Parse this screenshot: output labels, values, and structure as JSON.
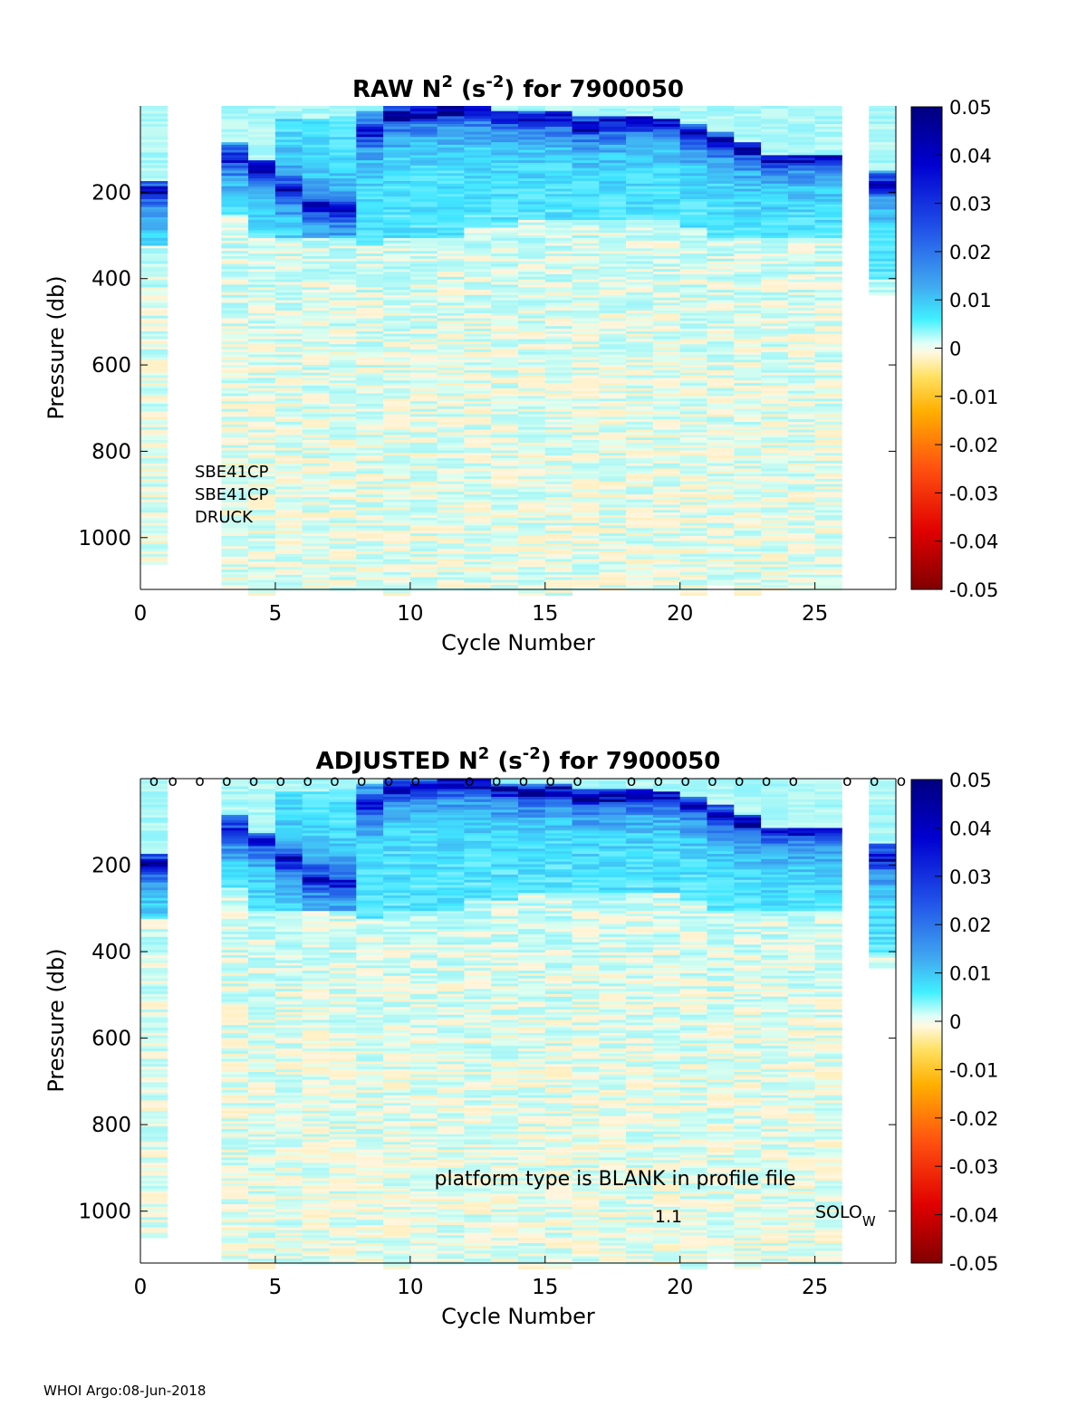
{
  "footer": {
    "text": "WHOI Argo:08-Jun-2018"
  },
  "chart_data": [
    {
      "type": "heatmap",
      "title": {
        "prefix": "RAW N",
        "sup1": "2",
        "mid": " (s",
        "sup2": "-2",
        "suffix": ") for 7900050"
      },
      "xlabel": "Cycle Number",
      "ylabel": "Pressure (db)",
      "xlim": [
        0,
        28
      ],
      "ylim": [
        1120,
        0
      ],
      "xticks": [
        0,
        5,
        10,
        15,
        20,
        25
      ],
      "yticks": [
        200,
        400,
        600,
        800,
        1000
      ],
      "colorbar": {
        "range": [
          -0.05,
          0.05
        ],
        "ticks": [
          "0.05",
          "0.04",
          "0.03",
          "0.02",
          "0.01",
          "0",
          "-0.01",
          "-0.02",
          "-0.03",
          "-0.04",
          "-0.05"
        ],
        "colormap": "jet-white-center"
      },
      "profiles": [
        {
          "cycle": 0,
          "max_p": 1060,
          "band_top": 170,
          "band_bot": 320,
          "peak": 195
        },
        {
          "cycle": 3,
          "max_p": 1115,
          "band_top": 80,
          "band_bot": 250,
          "peak": 120
        },
        {
          "cycle": 4,
          "max_p": 1130,
          "band_top": 125,
          "band_bot": 300,
          "peak": 140
        },
        {
          "cycle": 5,
          "max_p": 1120,
          "band_top": 30,
          "band_bot": 300,
          "peak": 190
        },
        {
          "cycle": 6,
          "max_p": 1120,
          "band_top": 30,
          "band_bot": 300,
          "peak": 230
        },
        {
          "cycle": 7,
          "max_p": 1120,
          "band_top": 20,
          "band_bot": 300,
          "peak": 240
        },
        {
          "cycle": 8,
          "max_p": 1120,
          "band_top": 10,
          "band_bot": 320,
          "peak": 60
        },
        {
          "cycle": 9,
          "max_p": 1130,
          "band_top": 0,
          "band_bot": 300,
          "peak": 20
        },
        {
          "cycle": 10,
          "max_p": 1120,
          "band_top": 0,
          "band_bot": 300,
          "peak": 15
        },
        {
          "cycle": 11,
          "max_p": 1120,
          "band_top": 0,
          "band_bot": 300,
          "peak": 10
        },
        {
          "cycle": 12,
          "max_p": 1120,
          "band_top": 0,
          "band_bot": 280,
          "peak": 10
        },
        {
          "cycle": 13,
          "max_p": 1120,
          "band_top": 10,
          "band_bot": 280,
          "peak": 25
        },
        {
          "cycle": 14,
          "max_p": 1130,
          "band_top": 10,
          "band_bot": 260,
          "peak": 30
        },
        {
          "cycle": 15,
          "max_p": 1130,
          "band_top": 10,
          "band_bot": 260,
          "peak": 25
        },
        {
          "cycle": 16,
          "max_p": 1120,
          "band_top": 20,
          "band_bot": 260,
          "peak": 45
        },
        {
          "cycle": 17,
          "max_p": 1120,
          "band_top": 20,
          "band_bot": 260,
          "peak": 40
        },
        {
          "cycle": 18,
          "max_p": 1120,
          "band_top": 20,
          "band_bot": 260,
          "peak": 35
        },
        {
          "cycle": 19,
          "max_p": 1120,
          "band_top": 30,
          "band_bot": 260,
          "peak": 40
        },
        {
          "cycle": 20,
          "max_p": 1130,
          "band_top": 40,
          "band_bot": 280,
          "peak": 60
        },
        {
          "cycle": 21,
          "max_p": 1110,
          "band_top": 60,
          "band_bot": 300,
          "peak": 80
        },
        {
          "cycle": 22,
          "max_p": 1130,
          "band_top": 80,
          "band_bot": 300,
          "peak": 100
        },
        {
          "cycle": 23,
          "max_p": 1120,
          "band_top": 110,
          "band_bot": 300,
          "peak": 120
        },
        {
          "cycle": 24,
          "max_p": 1120,
          "band_top": 110,
          "band_bot": 300,
          "peak": 115
        },
        {
          "cycle": 25,
          "max_p": 1120,
          "band_top": 110,
          "band_bot": 300,
          "peak": 115
        },
        {
          "cycle": 27,
          "max_p": 435,
          "band_top": 150,
          "band_bot": 400,
          "peak": 180
        }
      ],
      "annotations": [
        "SBE41CP",
        "SBE41CP",
        "DRUCK"
      ]
    },
    {
      "type": "heatmap",
      "title": {
        "prefix": "ADJUSTED N",
        "sup1": "2",
        "mid": " (s",
        "sup2": "-2",
        "suffix": ") for 7900050"
      },
      "xlabel": "Cycle Number",
      "ylabel": "Pressure (db)",
      "xlim": [
        0,
        28
      ],
      "ylim": [
        1120,
        0
      ],
      "xticks": [
        0,
        5,
        10,
        15,
        20,
        25
      ],
      "yticks": [
        200,
        400,
        600,
        800,
        1000
      ],
      "colorbar": {
        "range": [
          -0.05,
          0.05
        ],
        "ticks": [
          "0.05",
          "0.04",
          "0.03",
          "0.02",
          "0.01",
          "0",
          "-0.01",
          "-0.02",
          "-0.03",
          "-0.04",
          "-0.05"
        ],
        "colormap": "jet-white-center"
      },
      "profiles": [
        {
          "cycle": 0,
          "max_p": 1060,
          "band_top": 170,
          "band_bot": 320,
          "peak": 195
        },
        {
          "cycle": 3,
          "max_p": 1115,
          "band_top": 80,
          "band_bot": 250,
          "peak": 120
        },
        {
          "cycle": 4,
          "max_p": 1130,
          "band_top": 125,
          "band_bot": 300,
          "peak": 140
        },
        {
          "cycle": 5,
          "max_p": 1120,
          "band_top": 30,
          "band_bot": 300,
          "peak": 190
        },
        {
          "cycle": 6,
          "max_p": 1120,
          "band_top": 30,
          "band_bot": 300,
          "peak": 230
        },
        {
          "cycle": 7,
          "max_p": 1120,
          "band_top": 20,
          "band_bot": 300,
          "peak": 240
        },
        {
          "cycle": 8,
          "max_p": 1120,
          "band_top": 10,
          "band_bot": 320,
          "peak": 60
        },
        {
          "cycle": 9,
          "max_p": 1130,
          "band_top": 0,
          "band_bot": 300,
          "peak": 20
        },
        {
          "cycle": 10,
          "max_p": 1120,
          "band_top": 0,
          "band_bot": 300,
          "peak": 15
        },
        {
          "cycle": 11,
          "max_p": 1120,
          "band_top": 0,
          "band_bot": 300,
          "peak": 10
        },
        {
          "cycle": 12,
          "max_p": 1120,
          "band_top": 0,
          "band_bot": 280,
          "peak": 10
        },
        {
          "cycle": 13,
          "max_p": 1120,
          "band_top": 10,
          "band_bot": 280,
          "peak": 25
        },
        {
          "cycle": 14,
          "max_p": 1130,
          "band_top": 10,
          "band_bot": 260,
          "peak": 30
        },
        {
          "cycle": 15,
          "max_p": 1130,
          "band_top": 10,
          "band_bot": 260,
          "peak": 25
        },
        {
          "cycle": 16,
          "max_p": 1120,
          "band_top": 20,
          "band_bot": 260,
          "peak": 45
        },
        {
          "cycle": 17,
          "max_p": 1120,
          "band_top": 20,
          "band_bot": 260,
          "peak": 40
        },
        {
          "cycle": 18,
          "max_p": 1120,
          "band_top": 20,
          "band_bot": 260,
          "peak": 35
        },
        {
          "cycle": 19,
          "max_p": 1120,
          "band_top": 30,
          "band_bot": 260,
          "peak": 40
        },
        {
          "cycle": 20,
          "max_p": 1130,
          "band_top": 40,
          "band_bot": 280,
          "peak": 60
        },
        {
          "cycle": 21,
          "max_p": 1110,
          "band_top": 60,
          "band_bot": 300,
          "peak": 80
        },
        {
          "cycle": 22,
          "max_p": 1130,
          "band_top": 80,
          "band_bot": 300,
          "peak": 100
        },
        {
          "cycle": 23,
          "max_p": 1120,
          "band_top": 110,
          "band_bot": 300,
          "peak": 120
        },
        {
          "cycle": 24,
          "max_p": 1120,
          "band_top": 110,
          "band_bot": 300,
          "peak": 115
        },
        {
          "cycle": 25,
          "max_p": 1120,
          "band_top": 110,
          "band_bot": 300,
          "peak": 115
        },
        {
          "cycle": 27,
          "max_p": 435,
          "band_top": 150,
          "band_bot": 400,
          "peak": 180
        }
      ],
      "surface_markers": {
        "symbol": "o",
        "cycles": [
          0.5,
          1.2,
          2.2,
          3.2,
          4.2,
          5.2,
          6.2,
          7.2,
          8.2,
          9.2,
          10.2,
          12.2,
          13.2,
          14.2,
          15.2,
          16.2,
          18.2,
          19.2,
          20.2,
          21.2,
          22.2,
          23.2,
          24.2,
          26.2,
          27.2,
          28.2
        ]
      },
      "annotations": {
        "note": "platform type is BLANK in profile file",
        "version": "1.1",
        "platform": "SOLO",
        "platform_sub": "W"
      }
    }
  ]
}
